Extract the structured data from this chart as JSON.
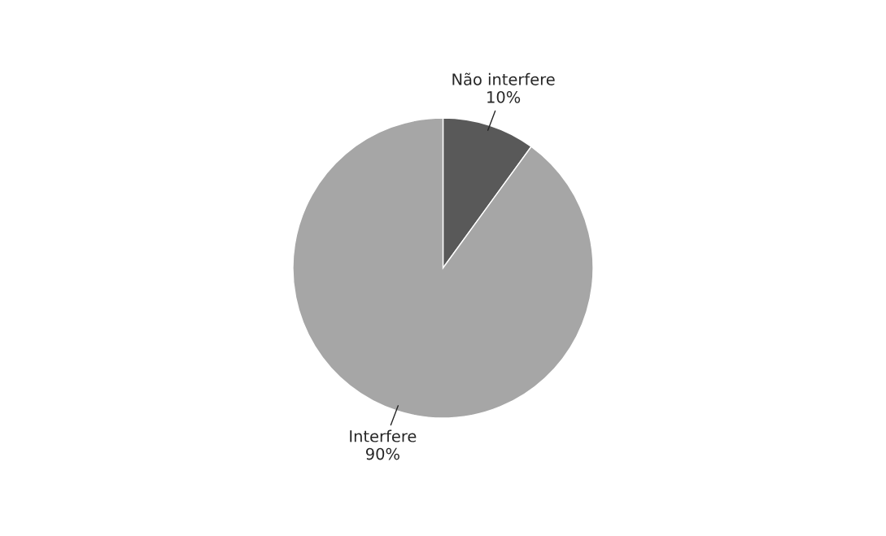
{
  "chart_data": {
    "type": "pie",
    "categories": [
      "Não interfere",
      "Interfere"
    ],
    "values": [
      10,
      90
    ],
    "colors": [
      "#595959",
      "#a6a6a6"
    ],
    "value_labels": [
      "10%",
      "90%"
    ],
    "legend": false
  }
}
